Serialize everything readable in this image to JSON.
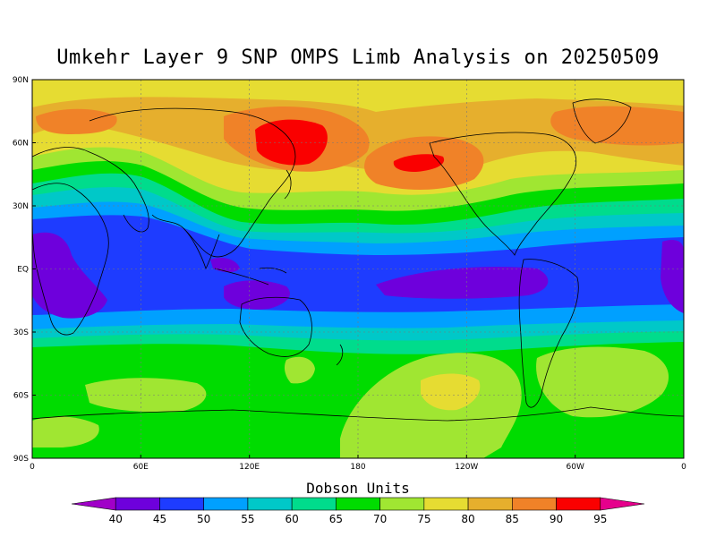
{
  "title": "Umkehr Layer 9 SNP OMPS Limb Analysis on 20250509",
  "colorbar": {
    "title": "Dobson Units",
    "ticks": [
      "40",
      "45",
      "50",
      "55",
      "60",
      "65",
      "70",
      "75",
      "80",
      "85",
      "90",
      "95"
    ],
    "colors": [
      "#a000c8",
      "#6e00dc",
      "#1e3cff",
      "#00a0ff",
      "#00c8c8",
      "#00dc8c",
      "#00dc00",
      "#a0e632",
      "#e6dc32",
      "#e6af2d",
      "#f08228",
      "#fa0000",
      "#e6008c"
    ]
  },
  "axes": {
    "lat_labels": [
      "90N",
      "60N",
      "30N",
      "EQ",
      "30S",
      "60S",
      "90S"
    ],
    "lon_labels": [
      "0",
      "60E",
      "120E",
      "180",
      "120W",
      "60W",
      "0"
    ]
  },
  "chart_data": {
    "type": "heatmap",
    "title": "Umkehr Layer 9 SNP OMPS Limb Analysis on 20250509",
    "units": "Dobson Units",
    "contour_levels": [
      40,
      45,
      50,
      55,
      60,
      65,
      70,
      75,
      80,
      85,
      90,
      95
    ],
    "x_range": [
      0,
      360
    ],
    "y_range": [
      -90,
      90
    ],
    "x_axis": "longitude",
    "y_axis": "latitude",
    "regions": [
      {
        "lat_band": "60N-90N",
        "value_range": [
          80,
          85
        ]
      },
      {
        "lat_band": "40N-60N",
        "value_range": [
          75,
          90
        ]
      },
      {
        "feature": "maximum near 60N,150E",
        "value_range": [
          90,
          95
        ]
      },
      {
        "feature": "maximum near 55N,160W",
        "value_range": [
          90,
          95
        ]
      },
      {
        "lat_band": "30N-40N",
        "value_range": [
          60,
          70
        ]
      },
      {
        "lat_band": "10N-30N",
        "value_range": [
          50,
          55
        ]
      },
      {
        "lat_band": "10S-10N",
        "value_range": [
          45,
          50
        ]
      },
      {
        "lat_band": "30S-10S",
        "value_range": [
          50,
          60
        ]
      },
      {
        "lat_band": "60S-30S",
        "value_range": [
          65,
          75
        ]
      },
      {
        "feature": "maximum near 50S,170W",
        "value_range": [
          75,
          80
        ]
      },
      {
        "lat_band": "90S-60S",
        "value_range": [
          70,
          75
        ]
      }
    ],
    "grid": true
  }
}
